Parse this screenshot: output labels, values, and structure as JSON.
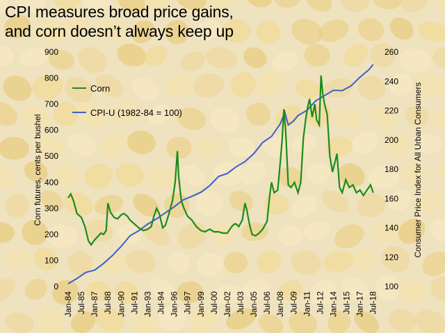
{
  "title": {
    "line1": "CPI measures broad price gains,",
    "line2": "and corn doesn’t always keep up"
  },
  "colors": {
    "corn": "#1a8c1a",
    "cpi": "#3a5fcd",
    "background": "#efe2bf"
  },
  "chart_data": {
    "type": "line",
    "title": "CPI measures broad price gains, and corn doesn’t always keep up",
    "xlabel": "",
    "ylabel_left": "Corn futures, cents per bushel",
    "ylabel_right": "Consumer Price Index for All Urban Consumers",
    "ylim_left": [
      0,
      900
    ],
    "ylim_right": [
      100,
      260
    ],
    "yticks_left": [
      "0",
      "100",
      "200",
      "300",
      "400",
      "500",
      "600",
      "700",
      "800",
      "900"
    ],
    "yticks_right": [
      "100",
      "120",
      "140",
      "160",
      "180",
      "200",
      "220",
      "240",
      "260"
    ],
    "xlim": [
      1984.0,
      2018.6
    ],
    "x_tick_labels": [
      "Jan-84",
      "Jul-85",
      "Jan-87",
      "Jul-88",
      "Jan-90",
      "Jul-91",
      "Jan-93",
      "Jul-94",
      "Jan-96",
      "Jul-97",
      "Jan-99",
      "Jul-00",
      "Jan-02",
      "Jul-03",
      "Jan-05",
      "Jul-06",
      "Jan-08",
      "Jul-09",
      "Jan-11",
      "Jul-12",
      "Jan-14",
      "Jul-15",
      "Jan-17",
      "Jul-18"
    ],
    "x_tick_values": [
      1984.0,
      1985.5,
      1987.0,
      1988.5,
      1990.0,
      1991.5,
      1993.0,
      1994.5,
      1996.0,
      1997.5,
      1999.0,
      2000.5,
      2002.0,
      2003.5,
      2005.0,
      2006.5,
      2008.0,
      2009.5,
      2011.0,
      2012.5,
      2014.0,
      2015.5,
      2017.0,
      2018.5
    ],
    "series": [
      {
        "name": "Corn",
        "axis": "left",
        "x": [
          1984.0,
          1984.3,
          1984.6,
          1985.0,
          1985.5,
          1985.9,
          1986.3,
          1986.6,
          1986.9,
          1987.3,
          1987.7,
          1988.0,
          1988.3,
          1988.5,
          1988.8,
          1989.2,
          1989.6,
          1990.0,
          1990.3,
          1990.7,
          1991.0,
          1991.5,
          1992.0,
          1992.5,
          1993.0,
          1993.4,
          1993.7,
          1994.0,
          1994.3,
          1994.7,
          1995.0,
          1995.4,
          1995.8,
          1996.1,
          1996.35,
          1996.5,
          1996.8,
          1997.1,
          1997.5,
          1998.0,
          1998.5,
          1999.0,
          1999.5,
          2000.0,
          2000.5,
          2001.0,
          2001.5,
          2002.0,
          2002.5,
          2002.8,
          2003.0,
          2003.3,
          2003.7,
          2004.0,
          2004.2,
          2004.5,
          2004.8,
          2005.2,
          2005.6,
          2006.0,
          2006.5,
          2006.8,
          2007.0,
          2007.3,
          2007.7,
          2008.0,
          2008.2,
          2008.4,
          2008.6,
          2008.9,
          2009.2,
          2009.6,
          2010.0,
          2010.3,
          2010.6,
          2010.9,
          2011.1,
          2011.3,
          2011.6,
          2011.9,
          2012.1,
          2012.4,
          2012.6,
          2012.8,
          2013.0,
          2013.3,
          2013.6,
          2013.9,
          2014.2,
          2014.4,
          2014.7,
          2015.0,
          2015.4,
          2015.8,
          2016.2,
          2016.6,
          2017.0,
          2017.4,
          2017.8,
          2018.2,
          2018.5
        ],
        "values": [
          340,
          355,
          330,
          280,
          265,
          230,
          175,
          160,
          175,
          190,
          205,
          200,
          215,
          320,
          285,
          265,
          260,
          275,
          280,
          270,
          255,
          240,
          225,
          215,
          220,
          230,
          270,
          300,
          280,
          225,
          235,
          280,
          330,
          400,
          520,
          420,
          330,
          300,
          270,
          255,
          230,
          215,
          210,
          220,
          210,
          210,
          205,
          205,
          230,
          240,
          240,
          230,
          255,
          320,
          295,
          240,
          200,
          195,
          205,
          220,
          250,
          350,
          400,
          360,
          370,
          480,
          560,
          680,
          600,
          390,
          380,
          400,
          360,
          400,
          570,
          650,
          690,
          720,
          650,
          700,
          640,
          620,
          810,
          740,
          700,
          660,
          500,
          440,
          480,
          510,
          380,
          360,
          410,
          380,
          390,
          360,
          370,
          350,
          370,
          390,
          360
        ]
      },
      {
        "name": "CPI-U (1982-84 = 100)",
        "axis": "right",
        "x": [
          1984.0,
          1985.0,
          1986.0,
          1987.0,
          1988.0,
          1989.0,
          1990.0,
          1991.0,
          1992.0,
          1993.0,
          1994.0,
          1995.0,
          1996.0,
          1997.0,
          1998.0,
          1999.0,
          2000.0,
          2001.0,
          2002.0,
          2003.0,
          2004.0,
          2005.0,
          2006.0,
          2007.0,
          2008.0,
          2008.5,
          2008.9,
          2009.5,
          2010.0,
          2011.0,
          2012.0,
          2013.0,
          2014.0,
          2015.0,
          2016.0,
          2017.0,
          2018.0,
          2018.5
        ],
        "values": [
          101.9,
          105.5,
          109.6,
          111.2,
          115.7,
          121.1,
          127.4,
          134.6,
          138.1,
          142.6,
          146.2,
          150.3,
          154.4,
          159.1,
          161.6,
          164.3,
          168.8,
          175.1,
          177.1,
          181.7,
          185.2,
          190.7,
          198.3,
          202.4,
          211.1,
          219.0,
          210.2,
          213.0,
          216.7,
          220.2,
          226.7,
          230.3,
          233.9,
          233.7,
          236.9,
          242.8,
          247.9,
          251.5
        ]
      }
    ]
  },
  "legend": {
    "corn_label": "Corn",
    "cpi_label": "CPI-U (1982-84 = 100)"
  },
  "axes": {
    "left_title": "Corn futures, cents per bushel",
    "right_title": "Consumer Price Index for All Urban Consumers"
  }
}
